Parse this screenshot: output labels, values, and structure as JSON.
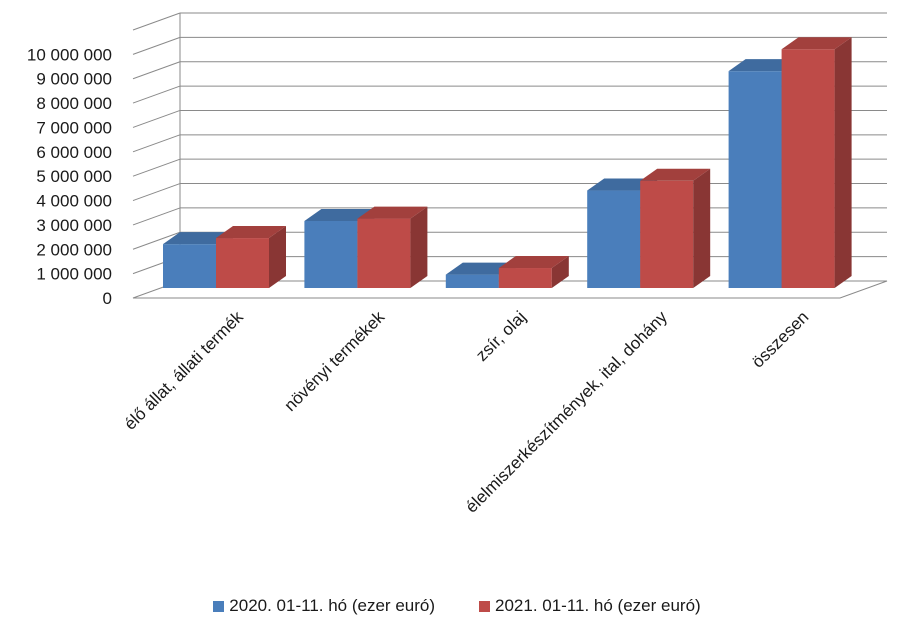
{
  "chart_data": {
    "type": "bar",
    "categories": [
      "élő állat, állati termék",
      "növényi termékek",
      "zsír, olaj",
      "élelmiszerkészítmények, ital, dohány",
      "összesen"
    ],
    "series": [
      {
        "name": "2020. 01-11. hó (ezer euró)",
        "values": [
          1800000,
          2750000,
          550000,
          4000000,
          8900000
        ],
        "color": "#4a7ebb"
      },
      {
        "name": "2021. 01-11. hó (ezer euró)",
        "values": [
          2050000,
          2850000,
          820000,
          4400000,
          9800000
        ],
        "color": "#be4b48"
      }
    ],
    "y_ticks": [
      "0",
      "1 000 000",
      "2 000 000",
      "3 000 000",
      "4 000 000",
      "5 000 000",
      "6 000 000",
      "7 000 000",
      "8 000 000",
      "9 000 000",
      "10 000 000"
    ],
    "ylim": [
      0,
      11000000
    ],
    "grid": true,
    "legend_position": "bottom",
    "style": "3d-clustered-column"
  }
}
